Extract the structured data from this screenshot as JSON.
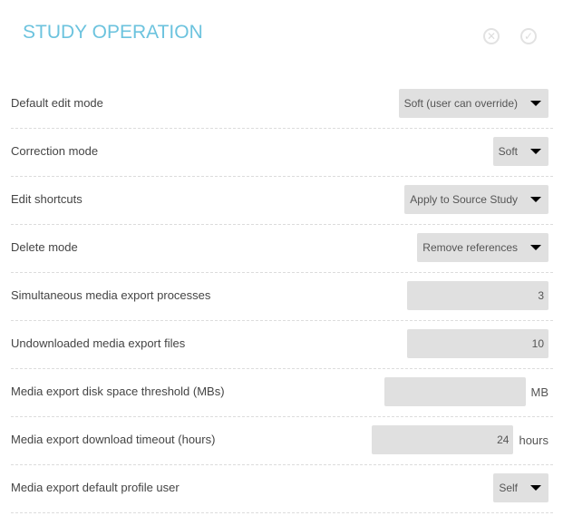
{
  "header": {
    "title": "STUDY OPERATION",
    "cancel_icon": "circle-x-icon",
    "confirm_icon": "circle-check-icon"
  },
  "colors": {
    "title": "#6cc3de",
    "control_bg": "#e0e0e0"
  },
  "settings": [
    {
      "label": "Default edit mode",
      "type": "select",
      "value": "Soft (user can override)"
    },
    {
      "label": "Correction mode",
      "type": "select",
      "value": "Soft"
    },
    {
      "label": "Edit shortcuts",
      "type": "select",
      "value": "Apply to Source Study"
    },
    {
      "label": "Delete mode",
      "type": "select",
      "value": "Remove references"
    },
    {
      "label": "Simultaneous media export processes",
      "type": "input",
      "value": "3",
      "unit": ""
    },
    {
      "label": "Undownloaded media export files",
      "type": "input",
      "value": "10",
      "unit": ""
    },
    {
      "label": "Media export disk space threshold (MBs)",
      "type": "input",
      "value": "",
      "unit": "MB"
    },
    {
      "label": "Media export download timeout (hours)",
      "type": "input",
      "value": "24",
      "unit": "hours"
    },
    {
      "label": "Media export default profile user",
      "type": "select",
      "value": "Self"
    }
  ]
}
